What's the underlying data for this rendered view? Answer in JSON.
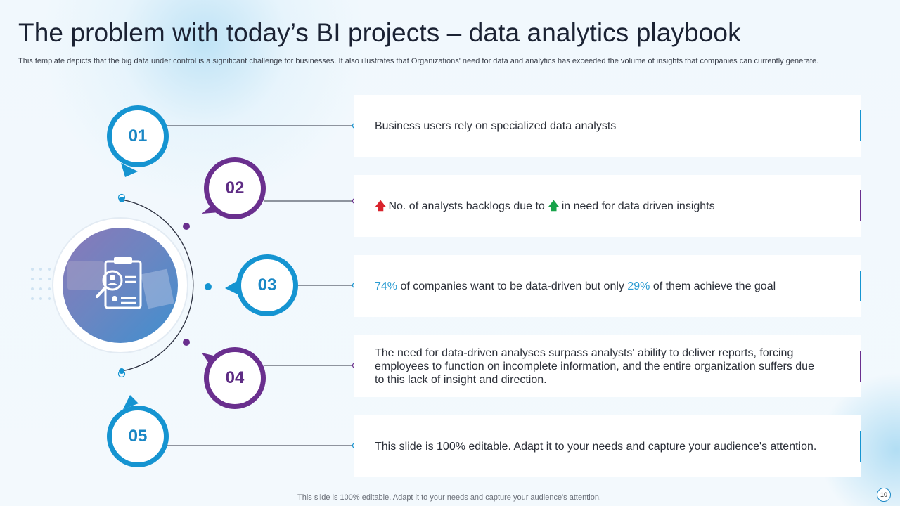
{
  "title": "The problem with today’s BI projects – data analytics playbook",
  "subtitle": "This template depicts that the big data under control is a significant challenge for businesses. It also illustrates that Organizations' need for data and analytics has exceeded the volume of insights that companies can currently generate.",
  "colors": {
    "blue": "#1594d1",
    "purple": "#6a2f8e",
    "highlight": "#2a9bd2",
    "arrow_red": "#d9232c",
    "arrow_green": "#18a34a"
  },
  "center_image": {
    "icon": "document-user-magnifier-icon"
  },
  "items": [
    {
      "number": "01",
      "text": "Business users rely on specialized data analysts"
    },
    {
      "number": "02",
      "text_a": "No. of analysts backlogs due to ",
      "text_b": "in need for data driven insights",
      "arrow_a_icon": "up-arrow-red-icon",
      "arrow_b_icon": "up-arrow-green-icon"
    },
    {
      "number": "03",
      "pct_a": "74%",
      "text_a": " of companies want to be data-driven but only ",
      "pct_b": "29%",
      "text_b": " of them achieve the goal"
    },
    {
      "number": "04",
      "text": "The need for data-driven analyses surpass analysts' ability to deliver reports, forcing employees to function on incomplete information, and the entire organization suffers due to this lack of insight and direction."
    },
    {
      "number": "05",
      "text": "This slide is 100% editable. Adapt it to your needs and capture your audience's attention."
    }
  ],
  "footer": "This slide is 100% editable. Adapt it to your needs and capture your audience's attention.",
  "page_number": "10"
}
